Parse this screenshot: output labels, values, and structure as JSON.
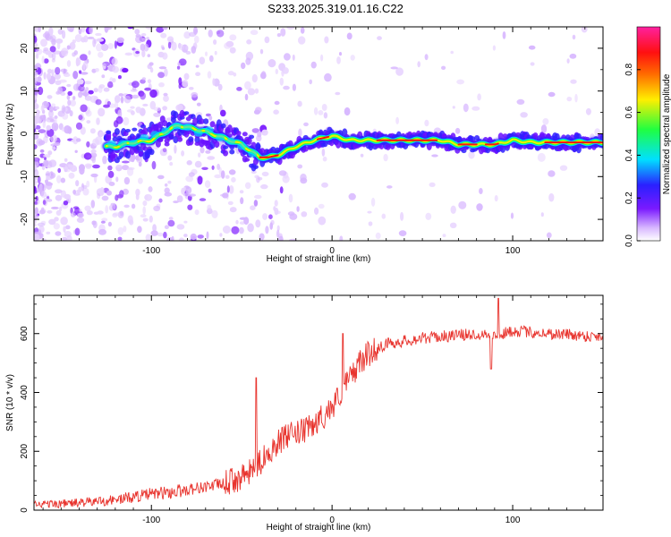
{
  "chart_data": [
    {
      "type": "heatmap",
      "title": "S233.2025.319.01.16.C22",
      "xlabel": "Height of straight line (km)",
      "ylabel": "Frequency (Hz)",
      "xlim": [
        -165,
        150
      ],
      "ylim": [
        -25,
        25
      ],
      "x_ticks": [
        -100,
        0,
        100
      ],
      "y_ticks": [
        -20,
        -10,
        0,
        10,
        20
      ],
      "x_tick_labels": [
        "-100",
        "0",
        "100"
      ],
      "y_tick_labels": [
        "-20",
        "-10",
        "0",
        "10",
        "20"
      ],
      "colorbar": {
        "label": "Normalized spectral amplitude",
        "range": [
          0,
          1
        ],
        "ticks": [
          0.0,
          0.2,
          0.4,
          0.6,
          0.8
        ],
        "tick_labels": [
          "0.0",
          "0.2",
          "0.4",
          "0.6",
          "0.8"
        ],
        "colors": [
          "#ffffff",
          "#d8b8ff",
          "#7a1aff",
          "#2a20ff",
          "#00e0ff",
          "#20ff40",
          "#ffee00",
          "#ff6a00",
          "#ff1010",
          "#ff20a0"
        ]
      },
      "ridge": {
        "x": [
          -120,
          -110,
          -100,
          -90,
          -85,
          -80,
          -70,
          -60,
          -50,
          -45,
          -40,
          -35,
          -30,
          -20,
          -10,
          -5,
          0,
          10,
          20,
          30,
          40,
          50,
          60,
          70,
          80,
          90,
          100,
          110,
          120,
          130,
          140,
          150
        ],
        "y": [
          -3,
          -2,
          -1.5,
          1,
          2,
          1.5,
          0.5,
          -1,
          -2.5,
          -4,
          -5.5,
          -5.5,
          -5,
          -3,
          -1.5,
          -1,
          -0.5,
          -1.5,
          -1.5,
          -1.5,
          -1.5,
          -1.5,
          -1.5,
          -2.5,
          -2.5,
          -2.5,
          -1.5,
          -2,
          -2,
          -2,
          -2,
          -2
        ]
      }
    },
    {
      "type": "line",
      "xlabel": "Height of straight line (km)",
      "ylabel": "SNR (10 * v/v)",
      "xlim": [
        -165,
        150
      ],
      "ylim": [
        0,
        730
      ],
      "x_ticks": [
        -100,
        0,
        100
      ],
      "y_ticks": [
        0,
        200,
        400,
        600
      ],
      "x_tick_labels": [
        "-100",
        "0",
        "100"
      ],
      "y_tick_labels": [
        "0",
        "200",
        "400",
        "600"
      ],
      "color": "#e8342e",
      "series": [
        {
          "name": "SNR",
          "x": [
            -165,
            -150,
            -140,
            -130,
            -120,
            -110,
            -100,
            -90,
            -80,
            -70,
            -60,
            -50,
            -45,
            -40,
            -35,
            -30,
            -25,
            -20,
            -15,
            -10,
            -5,
            0,
            5,
            10,
            15,
            20,
            25,
            30,
            40,
            50,
            60,
            70,
            80,
            85,
            90,
            95,
            100,
            110,
            120,
            130,
            140,
            150
          ],
          "y": [
            20,
            22,
            25,
            30,
            35,
            45,
            55,
            60,
            70,
            80,
            90,
            110,
            130,
            160,
            200,
            230,
            250,
            260,
            270,
            290,
            320,
            350,
            400,
            450,
            500,
            530,
            550,
            565,
            575,
            585,
            590,
            595,
            598,
            600,
            590,
            600,
            610,
            605,
            600,
            598,
            592,
            590
          ]
        }
      ],
      "spikes": [
        {
          "x": -42,
          "y": 450
        },
        {
          "x": 6,
          "y": 600
        },
        {
          "x": 92,
          "y": 720
        },
        {
          "x": 88,
          "y": 480
        }
      ],
      "noise_amplitude": 45
    }
  ]
}
